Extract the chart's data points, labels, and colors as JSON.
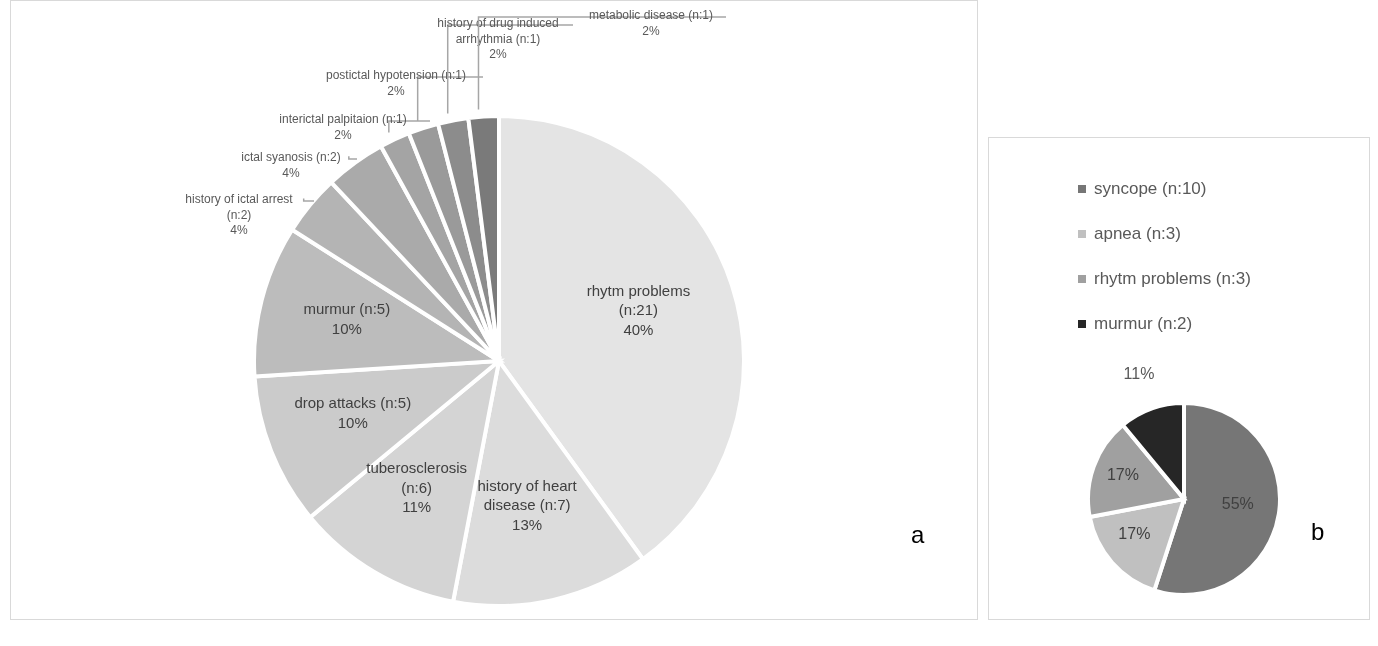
{
  "chart_data": [
    {
      "type": "pie",
      "categories": [
        "rhytm problems (n:21)",
        "history of heart disease (n:7)",
        "tuberosclerosis (n:6)",
        "drop attacks (n:5)",
        "murmur (n:5)",
        "history of ictal arrest (n:2)",
        "ictal syanosis (n:2)",
        "interictal palpitaion (n:1)",
        "postictal hypotension (n:1)",
        "history of drug induced arrhythmia (n:1)",
        "metabolic disease (n:1)"
      ],
      "values": [
        40,
        13,
        11,
        10,
        10,
        4,
        4,
        2,
        2,
        2,
        2
      ],
      "value_labels": [
        "40%",
        "13%",
        "11%",
        "10%",
        "10%",
        "4%",
        "4%",
        "2%",
        "2%",
        "2%",
        "2%"
      ],
      "colors": [
        "#e4e4e4",
        "#dcdcdc",
        "#d4d4d4",
        "#cbcbcb",
        "#bcbcbc",
        "#b4b4b4",
        "#aaaaaa",
        "#a4a4a4",
        "#9a9a9a",
        "#8c8c8c",
        "#7a7a7a"
      ],
      "legend": false,
      "annotations": [
        "a"
      ]
    },
    {
      "type": "pie",
      "categories": [
        "syncope (n:10)",
        "apnea (n:3)",
        "rhytm problems (n:3)",
        "murmur (n:2)"
      ],
      "values": [
        55,
        17,
        17,
        11
      ],
      "value_labels": [
        "55%",
        "17%",
        "17%",
        "11%"
      ],
      "colors": [
        "#767676",
        "#c0c0c0",
        "#a0a0a0",
        "#262626"
      ],
      "legend": "top",
      "annotations": [
        "b"
      ]
    }
  ]
}
